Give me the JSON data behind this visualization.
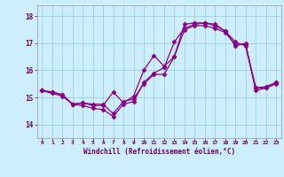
{
  "xlabel": "Windchill (Refroidissement éolien,°C)",
  "line_color": "#880088",
  "bg_color": "#cceeff",
  "grid_color": "#99cccc",
  "xlim": [
    -0.5,
    23.5
  ],
  "ylim": [
    13.5,
    18.4
  ],
  "xticks": [
    0,
    1,
    2,
    3,
    4,
    5,
    6,
    7,
    8,
    9,
    10,
    11,
    12,
    13,
    14,
    15,
    16,
    17,
    18,
    19,
    20,
    21,
    22,
    23
  ],
  "yticks": [
    14,
    15,
    16,
    17,
    18
  ],
  "series1_x": [
    0,
    1,
    2,
    3,
    4,
    5,
    6,
    7,
    8,
    9,
    10,
    11,
    12,
    13,
    14,
    15,
    16,
    17,
    18,
    19,
    20,
    21,
    22,
    23
  ],
  "series1_y": [
    15.25,
    15.15,
    15.05,
    14.75,
    14.7,
    14.6,
    14.55,
    14.3,
    14.75,
    14.85,
    15.55,
    15.9,
    16.1,
    17.05,
    17.55,
    17.7,
    17.75,
    17.7,
    17.45,
    16.9,
    17.0,
    15.25,
    15.35,
    15.5
  ],
  "series2_x": [
    0,
    1,
    2,
    3,
    4,
    5,
    6,
    7,
    8,
    9,
    10,
    11,
    12,
    13,
    14,
    15,
    16,
    17,
    18,
    19,
    20,
    21,
    22,
    23
  ],
  "series2_y": [
    15.25,
    15.2,
    15.1,
    14.75,
    14.8,
    14.7,
    14.7,
    15.2,
    14.8,
    15.05,
    16.0,
    16.55,
    16.15,
    16.5,
    17.7,
    17.75,
    17.75,
    17.65,
    17.45,
    17.05,
    16.9,
    15.35,
    15.35,
    15.55
  ],
  "series3_x": [
    0,
    1,
    2,
    3,
    4,
    5,
    6,
    7,
    8,
    9,
    10,
    11,
    12,
    13,
    14,
    15,
    16,
    17,
    18,
    19,
    20,
    21,
    22,
    23
  ],
  "series3_y": [
    15.25,
    15.2,
    15.1,
    14.75,
    14.8,
    14.75,
    14.75,
    14.4,
    14.85,
    14.95,
    15.5,
    15.85,
    15.85,
    16.5,
    17.5,
    17.65,
    17.65,
    17.55,
    17.4,
    16.95,
    16.95,
    15.35,
    15.4,
    15.55
  ],
  "marker_size": 2.5,
  "line_width": 0.9
}
